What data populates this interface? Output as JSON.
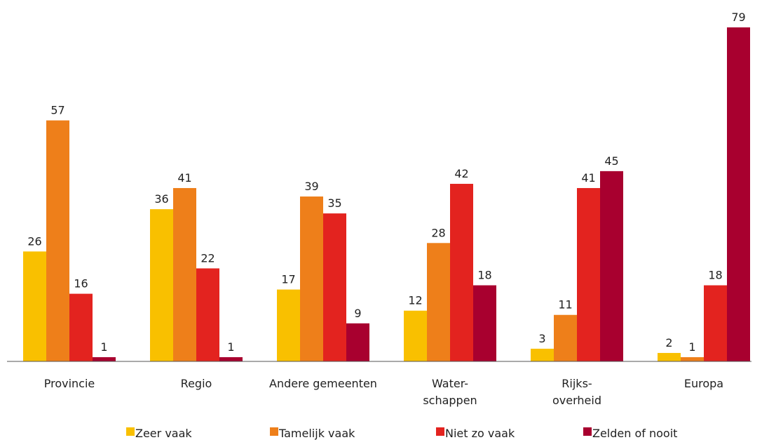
{
  "chart_data": {
    "type": "bar",
    "categories": [
      "Provincie",
      "Regio",
      "Andere gemeenten",
      "Water-\nschappen",
      "Rijks-\noverheid",
      "Europa"
    ],
    "series": [
      {
        "name": "Zeer vaak",
        "color": "#f9c000",
        "values": [
          26,
          36,
          17,
          12,
          3,
          2
        ]
      },
      {
        "name": "Tamelijk vaak",
        "color": "#ee7f1a",
        "values": [
          57,
          41,
          39,
          28,
          11,
          1
        ]
      },
      {
        "name": "Niet zo vaak",
        "color": "#e3231f",
        "values": [
          16,
          22,
          35,
          42,
          41,
          18
        ]
      },
      {
        "name": "Zelden of nooit",
        "color": "#a8002f",
        "values": [
          1,
          1,
          9,
          18,
          45,
          79
        ]
      }
    ],
    "ylim": [
      0,
      80
    ],
    "legend": "bottom"
  }
}
